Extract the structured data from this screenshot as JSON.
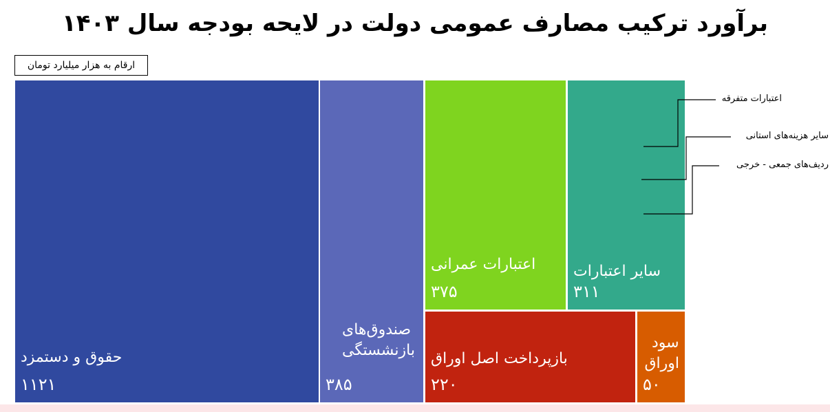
{
  "chart_data": {
    "type": "treemap",
    "title": "برآورد ترکیب مصارف عمومی دولت در لایحه بودجه سال ۱۴۰۳",
    "unit_note": "ارقام به هزار میلیارد تومان",
    "items": [
      {
        "name": "حقوق و دستمزد",
        "value": 1121,
        "display": "۱۱۲۱",
        "color": "#30499f"
      },
      {
        "name": "صندوق‌های بازنشستگی",
        "value": 385,
        "display": "۳۸۵",
        "color": "#5b68b8"
      },
      {
        "name": "اعتبارات عمرانی",
        "value": 375,
        "display": "۳۷۵",
        "color": "#7fd41f"
      },
      {
        "name": "سایر اعتبارات",
        "value": 311,
        "display": "۳۱۱",
        "color": "#33a98b"
      },
      {
        "name": "بازپرداخت اصل اوراق",
        "value": 220,
        "display": "۲۲۰",
        "color": "#c1230f"
      },
      {
        "name": "سود اوراق",
        "value": 50,
        "display": "۵۰",
        "color": "#d75c00"
      }
    ],
    "annotations": [
      "اعتبارات متفرقه",
      "سایر هزینه‌های استانی",
      "ردیف‌های جمعی - خرجی"
    ]
  }
}
